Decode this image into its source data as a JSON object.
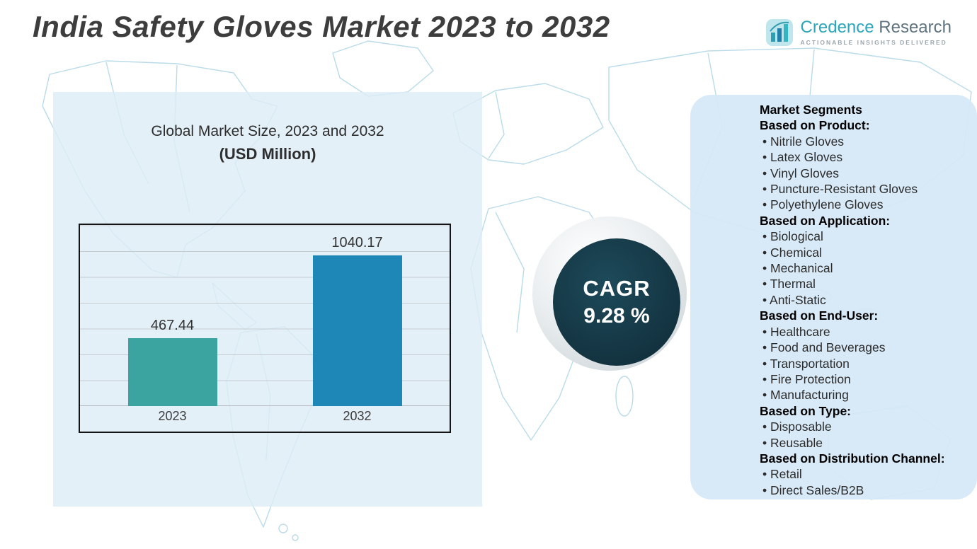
{
  "page": {
    "title": "India Safety Gloves Market 2023 to 2032"
  },
  "logo": {
    "name_primary": "Credence",
    "name_secondary": "Research",
    "tagline": "Actionable Insights Delivered"
  },
  "chart_data": {
    "type": "bar",
    "title": "Global Market Size, 2023 and 2032",
    "subtitle": "(USD Million)",
    "categories": [
      "2023",
      "2032"
    ],
    "values": [
      467.44,
      1040.17
    ],
    "value_labels": [
      "467.44",
      "1040.17"
    ],
    "ylabel": "USD Million",
    "ylim": [
      0,
      1250
    ],
    "grid": true,
    "legend": "none",
    "bar_colors": [
      "#3ba4a1",
      "#1f86b8"
    ]
  },
  "cagr": {
    "label": "CAGR",
    "value": "9.28 %"
  },
  "segments": {
    "heading": "Market Segments",
    "sections": [
      {
        "heading": "Based on Product:",
        "items": [
          "Nitrile Gloves",
          "Latex Gloves",
          "Vinyl Gloves",
          "Puncture-Resistant Gloves",
          "Polyethylene Gloves"
        ]
      },
      {
        "heading": "Based on Application:",
        "items": [
          "Biological",
          "Chemical",
          "Mechanical",
          "Thermal",
          "Anti-Static"
        ]
      },
      {
        "heading": "Based on End-User:",
        "items": [
          "Healthcare",
          "Food and Beverages",
          "Transportation",
          "Fire Protection",
          "Manufacturing"
        ]
      },
      {
        "heading": "Based on Type:",
        "items": [
          "Disposable",
          "Reusable"
        ]
      },
      {
        "heading": "Based on Distribution Channel:",
        "items": [
          "Retail",
          "Direct Sales/B2B"
        ]
      }
    ]
  },
  "colors": {
    "bar_2023": "#3ba4a1",
    "bar_2032": "#1f86b8",
    "cagr_circle": "#13323f",
    "panel_bg": "#ddecf7",
    "map_stroke": "#badbe9",
    "title_text": "#3d3d3d",
    "logo_teal": "#2ba6bb"
  }
}
